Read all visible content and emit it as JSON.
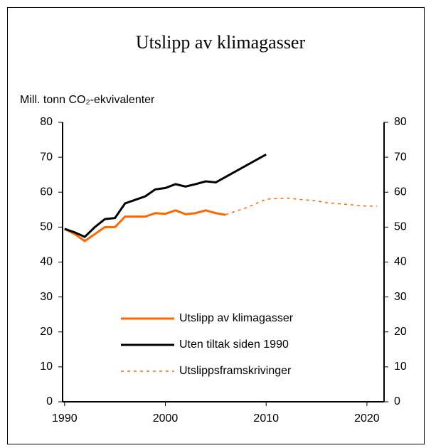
{
  "chart_data": {
    "type": "line",
    "title": "Utslipp av klimagasser",
    "y_label": "Mill. tonn CO₂-ekvivalenter",
    "xlim": [
      1989.8,
      2021.7
    ],
    "xticks": [
      1990,
      2000,
      2010,
      2020
    ],
    "ylim": [
      0,
      80
    ],
    "yticks": [
      0,
      10,
      20,
      30,
      40,
      50,
      60,
      70,
      80
    ],
    "y2lim": [
      0,
      80
    ],
    "y2ticks": [
      0,
      10,
      20,
      30,
      40,
      50,
      60,
      70,
      80
    ],
    "grid": false,
    "series": [
      {
        "name": "Utslipp av klimagasser",
        "color": "#ff6600",
        "style": "solid",
        "x": [
          1990,
          1991,
          1992,
          1993,
          1994,
          1995,
          1996,
          1997,
          1998,
          1999,
          2000,
          2001,
          2002,
          2003,
          2004,
          2005,
          2006
        ],
        "values": [
          49.5,
          48,
          46,
          48,
          50,
          50,
          53,
          53,
          53,
          54,
          53.8,
          54.8,
          53.7,
          54,
          54.8,
          54,
          53.5
        ]
      },
      {
        "name": "Uten tiltak siden 1990",
        "color": "#000000",
        "style": "solid",
        "x": [
          1990,
          1991,
          1992,
          1993,
          1994,
          1995,
          1996,
          1997,
          1998,
          1999,
          2000,
          2001,
          2002,
          2003,
          2004,
          2005,
          2010
        ],
        "values": [
          49.5,
          48.5,
          47.2,
          50,
          52.3,
          52.6,
          56.8,
          57.8,
          58.8,
          60.8,
          61.2,
          62.3,
          61.6,
          62.3,
          63.1,
          62.8,
          70.8
        ]
      },
      {
        "name": "Utslippsframskrivinger",
        "color": "#ff6600",
        "style": "dotted",
        "x": [
          2006,
          2008,
          2010,
          2012,
          2015,
          2016,
          2020,
          2021
        ],
        "values": [
          53.6,
          55.5,
          58,
          58.3,
          57.5,
          57,
          56,
          56
        ]
      }
    ]
  }
}
